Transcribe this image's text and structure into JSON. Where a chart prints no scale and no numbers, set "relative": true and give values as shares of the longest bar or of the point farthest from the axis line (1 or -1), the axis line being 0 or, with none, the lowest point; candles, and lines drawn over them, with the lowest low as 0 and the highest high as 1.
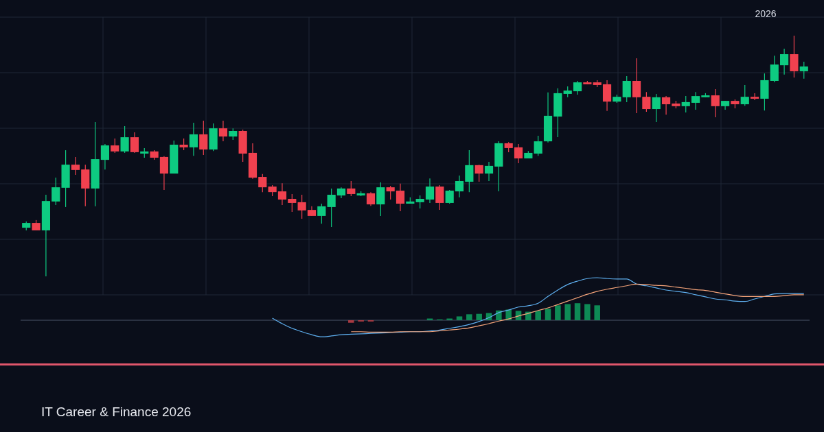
{
  "chart_data": [
    {
      "type": "candlestick",
      "relative": true,
      "grid": true,
      "categories": [
        null,
        null,
        null,
        null,
        null,
        null,
        null,
        null,
        null,
        null,
        null,
        null,
        null,
        null,
        null,
        null,
        null,
        null,
        null,
        null,
        null,
        null,
        null,
        null,
        null,
        null,
        null,
        null,
        null,
        null,
        null,
        null,
        null,
        null,
        null,
        null,
        null,
        null,
        null,
        null,
        null,
        null,
        null,
        null,
        null,
        null,
        null,
        null,
        null,
        null,
        null,
        null,
        null,
        null,
        null,
        null,
        null,
        null,
        null,
        null,
        null,
        null,
        null,
        null,
        null,
        null,
        null,
        null,
        null,
        null,
        null,
        null,
        null,
        null,
        null,
        null,
        null,
        null,
        null,
        null
      ],
      "ohlc": [
        [
          0.202,
          0.228,
          0.191,
          0.222
        ],
        [
          0.222,
          0.234,
          0.191,
          0.191
        ],
        [
          0.191,
          0.339,
          0,
          0.313
        ],
        [
          0.311,
          0.41,
          0.296,
          0.37
        ],
        [
          0.368,
          0.524,
          0.288,
          0.464
        ],
        [
          0.464,
          0.496,
          0.422,
          0.442
        ],
        [
          0.444,
          0.464,
          0.291,
          0.365
        ],
        [
          0.365,
          0.641,
          0.291,
          0.487
        ],
        [
          0.484,
          0.55,
          0.444,
          0.544
        ],
        [
          0.544,
          0.573,
          0.513,
          0.519
        ],
        [
          0.519,
          0.624,
          0.513,
          0.578
        ],
        [
          0.578,
          0.598,
          0.513,
          0.516
        ],
        [
          0.51,
          0.533,
          0.493,
          0.519
        ],
        [
          0.519,
          0.524,
          0.484,
          0.493
        ],
        [
          0.496,
          0.499,
          0.359,
          0.427
        ],
        [
          0.427,
          0.564,
          0.427,
          0.547
        ],
        [
          0.547,
          0.573,
          0.524,
          0.536
        ],
        [
          0.536,
          0.638,
          0.501,
          0.59
        ],
        [
          0.59,
          0.647,
          0.504,
          0.527
        ],
        [
          0.527,
          0.635,
          0.521,
          0.615
        ],
        [
          0.615,
          0.647,
          0.561,
          0.581
        ],
        [
          0.581,
          0.615,
          0.567,
          0.604
        ],
        [
          0.604,
          0.61,
          0.476,
          0.51
        ],
        [
          0.513,
          0.553,
          0.405,
          0.41
        ],
        [
          0.413,
          0.425,
          0.35,
          0.37
        ],
        [
          0.373,
          0.379,
          0.333,
          0.35
        ],
        [
          0.353,
          0.387,
          0.296,
          0.319
        ],
        [
          0.322,
          0.342,
          0.268,
          0.305
        ],
        [
          0.308,
          0.339,
          0.239,
          0.274
        ],
        [
          0.276,
          0.291,
          0.251,
          0.251
        ],
        [
          0.251,
          0.302,
          0.219,
          0.291
        ],
        [
          0.288,
          0.365,
          0.205,
          0.339
        ],
        [
          0.336,
          0.37,
          0.325,
          0.365
        ],
        [
          0.365,
          0.396,
          0.333,
          0.342
        ],
        [
          0.336,
          0.353,
          0.333,
          0.345
        ],
        [
          0.345,
          0.35,
          0.293,
          0.299
        ],
        [
          0.299,
          0.39,
          0.251,
          0.37
        ],
        [
          0.37,
          0.376,
          0.319,
          0.353
        ],
        [
          0.356,
          0.385,
          0.271,
          0.302
        ],
        [
          0.302,
          0.328,
          0.302,
          0.311
        ],
        [
          0.308,
          0.336,
          0.282,
          0.322
        ],
        [
          0.319,
          0.407,
          0.305,
          0.373
        ],
        [
          0.373,
          0.379,
          0.276,
          0.305
        ],
        [
          0.305,
          0.359,
          0.302,
          0.356
        ],
        [
          0.353,
          0.419,
          0.328,
          0.396
        ],
        [
          0.393,
          0.524,
          0.35,
          0.462
        ],
        [
          0.462,
          0.464,
          0.393,
          0.427
        ],
        [
          0.427,
          0.476,
          0.396,
          0.459
        ],
        [
          0.456,
          0.561,
          0.353,
          0.553
        ],
        [
          0.553,
          0.558,
          0.516,
          0.533
        ],
        [
          0.536,
          0.55,
          0.47,
          0.49
        ],
        [
          0.49,
          0.521,
          0.49,
          0.513
        ],
        [
          0.51,
          0.584,
          0.501,
          0.561
        ],
        [
          0.561,
          0.764,
          0.556,
          0.667
        ],
        [
          0.664,
          0.781,
          0.578,
          0.761
        ],
        [
          0.758,
          0.789,
          0.744,
          0.772
        ],
        [
          0.769,
          0.812,
          0.755,
          0.806
        ],
        [
          0.806,
          0.812,
          0.798,
          0.798
        ],
        [
          0.806,
          0.815,
          0.786,
          0.795
        ],
        [
          0.798,
          0.815,
          0.687,
          0.726
        ],
        [
          0.726,
          0.755,
          0.721,
          0.746
        ],
        [
          0.744,
          0.832,
          0.724,
          0.812
        ],
        [
          0.812,
          0.906,
          0.678,
          0.744
        ],
        [
          0.746,
          0.766,
          0.684,
          0.695
        ],
        [
          0.695,
          0.758,
          0.641,
          0.744
        ],
        [
          0.744,
          0.749,
          0.672,
          0.715
        ],
        [
          0.718,
          0.729,
          0.698,
          0.707
        ],
        [
          0.707,
          0.749,
          0.681,
          0.724
        ],
        [
          0.721,
          0.766,
          0.692,
          0.749
        ],
        [
          0.744,
          0.761,
          0.744,
          0.752
        ],
        [
          0.752,
          0.778,
          0.661,
          0.707
        ],
        [
          0.707,
          0.729,
          0.692,
          0.729
        ],
        [
          0.729,
          0.735,
          0.698,
          0.715
        ],
        [
          0.715,
          0.795,
          0.709,
          0.746
        ],
        [
          0.746,
          0.761,
          0.732,
          0.738
        ],
        [
          0.738,
          0.843,
          0.689,
          0.815
        ],
        [
          0.812,
          0.917,
          0.806,
          0.88
        ],
        [
          0.877,
          0.946,
          0.838,
          0.923
        ],
        [
          0.923,
          1,
          0.826,
          0.852
        ],
        [
          0.852,
          0.892,
          0.821,
          0.872
        ]
      ],
      "colors": [
        "#0ecb81",
        "#f0414f",
        "#0ecb81",
        "#0ecb81",
        "#0ecb81",
        "#f0414f",
        "#f0414f",
        "#0ecb81",
        "#0ecb81",
        "#f0414f",
        "#0ecb81",
        "#f0414f",
        "#0ecb81",
        "#f0414f",
        "#f0414f",
        "#0ecb81",
        "#f0414f",
        "#0ecb81",
        "#f0414f",
        "#0ecb81",
        "#f0414f",
        "#0ecb81",
        "#f0414f",
        "#f0414f",
        "#f0414f",
        "#f0414f",
        "#f0414f",
        "#f0414f",
        "#f0414f",
        "#f0414f",
        "#0ecb81",
        "#0ecb81",
        "#0ecb81",
        "#f0414f",
        "#0ecb81",
        "#f0414f",
        "#0ecb81",
        "#f0414f",
        "#f0414f",
        "#0ecb81",
        "#0ecb81",
        "#0ecb81",
        "#f0414f",
        "#0ecb81",
        "#0ecb81",
        "#0ecb81",
        "#f0414f",
        "#0ecb81",
        "#0ecb81",
        "#f0414f",
        "#f0414f",
        "#0ecb81",
        "#0ecb81",
        "#0ecb81",
        "#0ecb81",
        "#0ecb81",
        "#0ecb81",
        "#f0414f",
        "#f0414f",
        "#f0414f",
        "#0ecb81",
        "#0ecb81",
        "#f0414f",
        "#f0414f",
        "#0ecb81",
        "#f0414f",
        "#f0414f",
        "#0ecb81",
        "#0ecb81",
        "#0ecb81",
        "#f0414f",
        "#0ecb81",
        "#f0414f",
        "#0ecb81",
        "#f0414f",
        "#0ecb81",
        "#0ecb81",
        "#0ecb81",
        "#f0414f",
        "#0ecb81"
      ],
      "annotations": [
        "2026",
        "IT Career & Finance 2026"
      ]
    },
    {
      "type": "line",
      "relative": true,
      "categories": [
        null,
        null,
        null,
        null,
        null,
        null,
        null,
        null,
        null,
        null,
        null,
        null,
        null,
        null,
        null,
        null,
        null,
        null,
        null,
        null,
        null,
        null,
        null,
        null,
        null,
        null,
        null,
        null,
        null,
        null,
        null,
        null,
        null,
        null,
        null,
        null,
        null,
        null,
        null,
        null,
        null,
        null,
        null,
        null,
        null,
        null,
        null,
        null,
        null,
        null,
        null,
        null,
        null,
        null,
        null,
        null,
        null,
        null,
        null,
        null,
        null,
        null,
        null,
        null,
        null,
        null,
        null,
        null,
        null,
        null,
        null,
        null,
        null,
        null,
        null,
        null,
        null,
        null,
        null,
        null
      ],
      "series": [
        {
          "type": "bar",
          "color": "#a83a42",
          "values": [
            null,
            null,
            null,
            null,
            null,
            null,
            null,
            null,
            null,
            null,
            null,
            null,
            null,
            null,
            null,
            null,
            null,
            null,
            null,
            null,
            null,
            null,
            null,
            null,
            null,
            null,
            null,
            null,
            null,
            null,
            null,
            null,
            null,
            -0.06,
            -0.03,
            -0.03,
            null,
            null,
            null,
            null,
            null,
            null,
            null,
            null,
            null,
            null,
            null,
            null,
            null,
            null,
            null,
            null,
            null,
            null,
            null,
            null,
            null,
            null,
            null,
            null,
            null,
            null,
            null,
            null,
            null,
            null,
            null,
            null,
            null,
            null,
            null,
            null,
            null,
            null,
            null,
            null,
            null,
            null,
            null,
            null
          ]
        },
        {
          "type": "bar",
          "color": "#0e8a55",
          "values": [
            null,
            null,
            null,
            null,
            null,
            null,
            null,
            null,
            null,
            null,
            null,
            null,
            null,
            null,
            null,
            null,
            null,
            null,
            null,
            null,
            null,
            null,
            null,
            null,
            null,
            null,
            null,
            null,
            null,
            null,
            null,
            null,
            null,
            null,
            null,
            null,
            null,
            null,
            null,
            null,
            null,
            0.04,
            0.02,
            0.04,
            0.09,
            0.14,
            0.15,
            0.17,
            0.23,
            0.25,
            0.22,
            0.2,
            0.22,
            0.27,
            0.35,
            0.38,
            0.4,
            0.38,
            0.35,
            null,
            null,
            null,
            null,
            null,
            null,
            null,
            null,
            null,
            null,
            null,
            null,
            null,
            null,
            null,
            null,
            null,
            null,
            null,
            null,
            null
          ]
        },
        {
          "type": "line",
          "color": "#5fb0f0",
          "values": [
            null,
            null,
            null,
            null,
            null,
            null,
            null,
            null,
            null,
            null,
            null,
            null,
            null,
            null,
            null,
            null,
            null,
            null,
            null,
            null,
            null,
            null,
            null,
            null,
            null,
            0.05,
            -0.08,
            -0.19,
            -0.27,
            -0.34,
            -0.39,
            -0.37,
            -0.34,
            -0.33,
            -0.32,
            -0.31,
            -0.3,
            -0.29,
            -0.28,
            -0.27,
            -0.27,
            -0.25,
            -0.23,
            -0.19,
            -0.15,
            -0.1,
            -0.03,
            0.06,
            0.18,
            0.24,
            0.31,
            0.34,
            0.4,
            0.56,
            0.71,
            0.84,
            0.92,
            0.98,
            1,
            0.98,
            0.97,
            0.97,
            0.85,
            0.81,
            0.76,
            0.71,
            0.68,
            0.65,
            0.6,
            0.55,
            0.5,
            0.48,
            0.45,
            0.44,
            0.5,
            0.56,
            0.62,
            0.63,
            0.63,
            0.63
          ]
        },
        {
          "type": "line",
          "color": "#f5a47a",
          "values": [
            null,
            null,
            null,
            null,
            null,
            null,
            null,
            null,
            null,
            null,
            null,
            null,
            null,
            null,
            null,
            null,
            null,
            null,
            null,
            null,
            null,
            null,
            null,
            null,
            null,
            null,
            null,
            null,
            null,
            null,
            null,
            null,
            null,
            -0.27,
            -0.27,
            -0.28,
            -0.28,
            -0.28,
            -0.27,
            -0.27,
            -0.27,
            -0.27,
            -0.25,
            -0.23,
            -0.21,
            -0.18,
            -0.13,
            -0.08,
            -0.02,
            0.03,
            0.1,
            0.16,
            0.23,
            0.29,
            0.37,
            0.45,
            0.53,
            0.61,
            0.68,
            0.73,
            0.77,
            0.81,
            0.85,
            0.84,
            0.82,
            0.81,
            0.78,
            0.75,
            0.72,
            0.7,
            0.66,
            0.62,
            0.58,
            0.56,
            0.56,
            0.56,
            0.56,
            0.58,
            0.6,
            0.6
          ]
        }
      ]
    }
  ]
}
